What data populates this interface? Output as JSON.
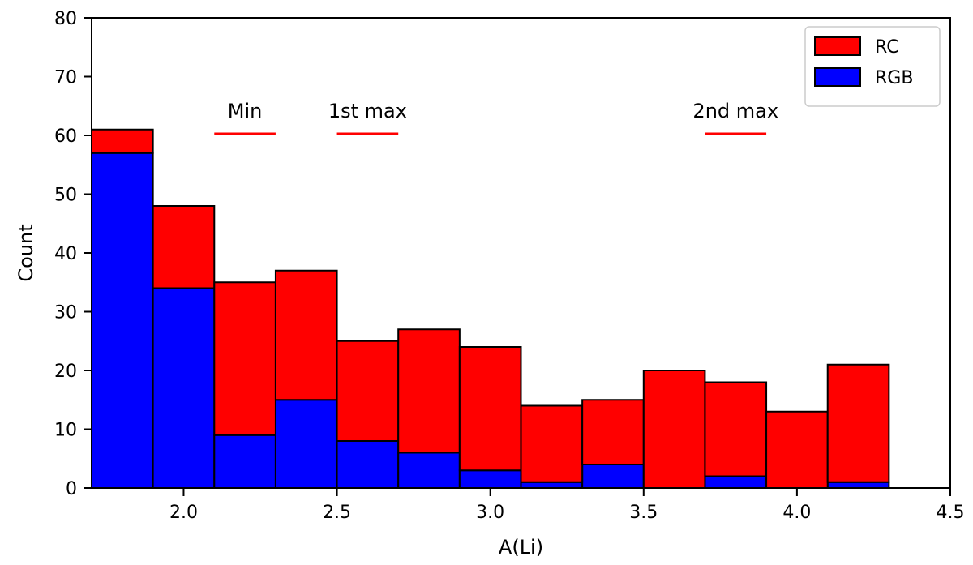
{
  "chart_data": {
    "type": "bar",
    "stacked": true,
    "xlabel": "A(Li)",
    "ylabel": "Count",
    "xlim": [
      1.7,
      4.5
    ],
    "ylim": [
      0,
      80
    ],
    "x_ticks": [
      2.0,
      2.5,
      3.0,
      3.5,
      4.0,
      4.5
    ],
    "x_tick_labels": [
      "2.0",
      "2.5",
      "3.0",
      "3.5",
      "4.0",
      "4.5"
    ],
    "y_ticks": [
      0,
      10,
      20,
      30,
      40,
      50,
      60,
      70,
      80
    ],
    "y_tick_labels": [
      "0",
      "10",
      "20",
      "30",
      "40",
      "50",
      "60",
      "70",
      "80"
    ],
    "bin_edges": [
      1.7,
      1.9,
      2.1,
      2.3,
      2.5,
      2.7,
      2.9,
      3.1,
      3.3,
      3.5,
      3.7,
      3.9,
      4.1,
      4.3
    ],
    "series": [
      {
        "name": "RGB",
        "color": "#0000ff",
        "values": [
          57,
          34,
          9,
          15,
          8,
          6,
          3,
          1,
          4,
          0,
          2,
          0,
          1
        ]
      },
      {
        "name": "RC",
        "color": "#ff0000",
        "values": [
          4,
          14,
          26,
          22,
          17,
          21,
          21,
          13,
          11,
          20,
          16,
          13,
          20
        ]
      }
    ],
    "totals": [
      61,
      48,
      35,
      37,
      25,
      27,
      24,
      14,
      15,
      20,
      18,
      13,
      21
    ],
    "legend": {
      "placement": "top-right",
      "entries": [
        {
          "label": "RC",
          "color": "#ff0000"
        },
        {
          "label": "RGB",
          "color": "#0000ff"
        }
      ]
    },
    "annotations": [
      {
        "text": "Min",
        "x_range": [
          2.1,
          2.3
        ],
        "y": 60,
        "color": "#ff0000"
      },
      {
        "text": "1st max",
        "x_range": [
          2.5,
          2.7
        ],
        "y": 60,
        "color": "#ff0000"
      },
      {
        "text": "2nd max",
        "x_range": [
          3.7,
          3.9
        ],
        "y": 60,
        "color": "#ff0000"
      }
    ],
    "grid": false
  }
}
